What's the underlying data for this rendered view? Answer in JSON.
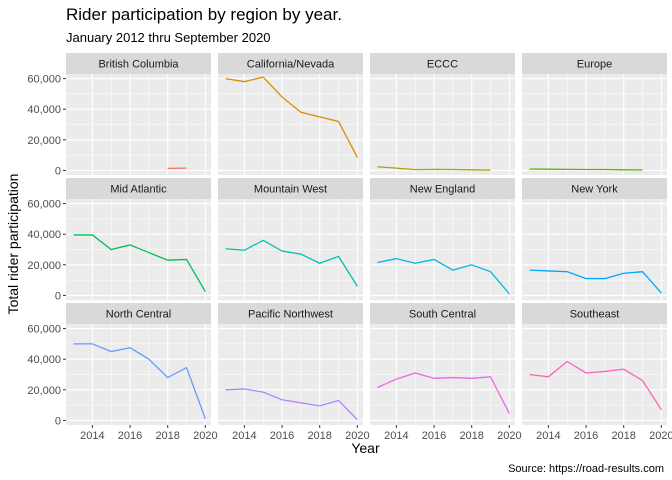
{
  "chart_data": {
    "type": "line",
    "title": "Rider participation by region by year.",
    "subtitle": "January 2012 thru September 2020",
    "xlabel": "Year",
    "ylabel": "Total rider participation",
    "caption": "Source: https://road-results.com",
    "xlim": [
      2012.6,
      2020.3
    ],
    "ylim": [
      -3000,
      63000
    ],
    "x_ticks": [
      2014,
      2016,
      2018,
      2020
    ],
    "x_tick_labels": [
      "2014",
      "2016",
      "2018",
      "2020"
    ],
    "y_ticks": [
      0,
      20000,
      40000,
      60000
    ],
    "y_tick_labels": [
      "0",
      "20,000",
      "40,000",
      "60,000"
    ],
    "grid": true,
    "legend": "none",
    "facets": [
      {
        "name": "British Columbia",
        "color": "#F8766D",
        "x": [
          2018,
          2019
        ],
        "y": [
          1300,
          1500
        ]
      },
      {
        "name": "California/Nevada",
        "color": "#DB8E00",
        "x": [
          2013,
          2014,
          2015,
          2016,
          2017,
          2018,
          2019,
          2020
        ],
        "y": [
          60000,
          58000,
          61000,
          48000,
          38000,
          35000,
          32000,
          8500
        ]
      },
      {
        "name": "ECCC",
        "color": "#AEA200",
        "x": [
          2013,
          2014,
          2015,
          2016,
          2017,
          2018,
          2019
        ],
        "y": [
          2400,
          1500,
          500,
          700,
          600,
          400,
          200
        ]
      },
      {
        "name": "Europe",
        "color": "#64B200",
        "x": [
          2013,
          2014,
          2015,
          2016,
          2017,
          2018,
          2019
        ],
        "y": [
          900,
          800,
          700,
          600,
          600,
          400,
          300
        ]
      },
      {
        "name": "Mid Atlantic",
        "color": "#00BD5C",
        "x": [
          2013,
          2014,
          2015,
          2016,
          2017,
          2018,
          2019,
          2020
        ],
        "y": [
          39500,
          39500,
          30000,
          33000,
          28000,
          23000,
          23500,
          2500
        ]
      },
      {
        "name": "Mountain West",
        "color": "#00C1A7",
        "x": [
          2013,
          2014,
          2015,
          2016,
          2017,
          2018,
          2019,
          2020
        ],
        "y": [
          30500,
          29500,
          36000,
          29000,
          27000,
          21000,
          25500,
          6000
        ]
      },
      {
        "name": "New England",
        "color": "#00BADE",
        "x": [
          2013,
          2014,
          2015,
          2016,
          2017,
          2018,
          2019,
          2020
        ],
        "y": [
          21500,
          24000,
          21000,
          23500,
          16500,
          20000,
          15500,
          1000
        ]
      },
      {
        "name": "New York",
        "color": "#00A6FF",
        "x": [
          2013,
          2014,
          2015,
          2016,
          2017,
          2018,
          2019,
          2020
        ],
        "y": [
          16500,
          16000,
          15500,
          11000,
          11000,
          14500,
          15500,
          1500
        ]
      },
      {
        "name": "North Central",
        "color": "#619CFF",
        "x": [
          2013,
          2014,
          2015,
          2016,
          2017,
          2018,
          2019,
          2020
        ],
        "y": [
          50000,
          50000,
          45000,
          47500,
          40000,
          28000,
          34500,
          1000
        ]
      },
      {
        "name": "Pacific Northwest",
        "color": "#B385FF",
        "x": [
          2013,
          2014,
          2015,
          2016,
          2017,
          2018,
          2019,
          2020
        ],
        "y": [
          20000,
          20500,
          18500,
          13500,
          11500,
          9500,
          13000,
          500
        ]
      },
      {
        "name": "South Central",
        "color": "#EF67EB",
        "x": [
          2013,
          2014,
          2015,
          2016,
          2017,
          2018,
          2019,
          2020
        ],
        "y": [
          21500,
          27000,
          31000,
          27500,
          28000,
          27500,
          28500,
          4500
        ]
      },
      {
        "name": "Southeast",
        "color": "#FF63B6",
        "x": [
          2013,
          2014,
          2015,
          2016,
          2017,
          2018,
          2019,
          2020
        ],
        "y": [
          30000,
          28500,
          38500,
          31000,
          32000,
          33500,
          26000,
          7000
        ]
      }
    ]
  }
}
